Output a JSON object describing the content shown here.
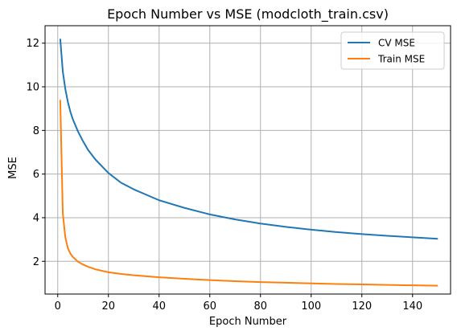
{
  "chart_data": {
    "type": "line",
    "title": "Epoch Number vs MSE (modcloth_train.csv)",
    "xlabel": "Epoch Number",
    "ylabel": "MSE",
    "xlim": [
      -5,
      155
    ],
    "ylim": [
      0.5,
      12.8
    ],
    "xticks": [
      0,
      20,
      40,
      60,
      80,
      100,
      120,
      140
    ],
    "yticks": [
      2,
      4,
      6,
      8,
      10,
      12
    ],
    "grid": true,
    "legend": "top-right",
    "series": [
      {
        "name": "CV MSE",
        "color": "#1f77b4",
        "x": [
          1,
          2,
          3,
          4,
          5,
          6,
          8,
          10,
          12,
          15,
          20,
          25,
          30,
          40,
          50,
          60,
          70,
          80,
          90,
          100,
          110,
          120,
          130,
          140,
          150
        ],
        "y": [
          12.2,
          10.7,
          9.9,
          9.3,
          8.85,
          8.5,
          7.95,
          7.5,
          7.1,
          6.65,
          6.05,
          5.6,
          5.3,
          4.8,
          4.45,
          4.15,
          3.92,
          3.73,
          3.58,
          3.45,
          3.34,
          3.25,
          3.17,
          3.1,
          3.03
        ]
      },
      {
        "name": "Train MSE",
        "color": "#ff7f0e",
        "x": [
          1,
          2,
          3,
          4,
          5,
          6,
          8,
          10,
          12,
          15,
          20,
          25,
          30,
          40,
          50,
          60,
          70,
          80,
          90,
          100,
          110,
          120,
          130,
          140,
          150
        ],
        "y": [
          9.4,
          4.2,
          3.1,
          2.6,
          2.35,
          2.2,
          1.98,
          1.85,
          1.75,
          1.63,
          1.5,
          1.42,
          1.36,
          1.27,
          1.2,
          1.14,
          1.09,
          1.05,
          1.02,
          0.99,
          0.96,
          0.94,
          0.92,
          0.9,
          0.88
        ]
      }
    ]
  }
}
